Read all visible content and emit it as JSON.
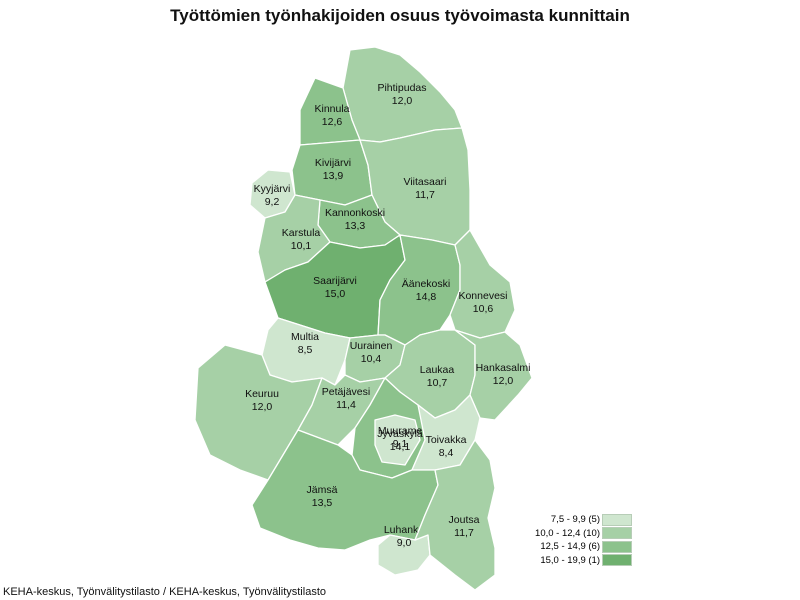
{
  "title": "Työttömien työnhakijoiden osuus työvoimasta kunnittain",
  "source": "KEHA-keskus, Työnvälitystilasto / KEHA-keskus, Työnvälitystilasto",
  "colors": {
    "class1": "#cfe6cf",
    "class2": "#a6d0a6",
    "class3": "#8cc28c",
    "class4": "#6fb06f"
  },
  "municipalities": [
    {
      "name": "Pihtipudas",
      "value": "12,0",
      "class": "class2"
    },
    {
      "name": "Kinnula",
      "value": "12,6",
      "class": "class3"
    },
    {
      "name": "Kivijärvi",
      "value": "13,9",
      "class": "class3"
    },
    {
      "name": "Viitasaari",
      "value": "11,7",
      "class": "class2"
    },
    {
      "name": "Kyyjärvi",
      "value": "9,2",
      "class": "class1"
    },
    {
      "name": "Kannonkoski",
      "value": "13,3",
      "class": "class3"
    },
    {
      "name": "Karstula",
      "value": "10,1",
      "class": "class2"
    },
    {
      "name": "Saarijärvi",
      "value": "15,0",
      "class": "class4"
    },
    {
      "name": "Äänekoski",
      "value": "14,8",
      "class": "class3"
    },
    {
      "name": "Konnevesi",
      "value": "10,6",
      "class": "class2"
    },
    {
      "name": "Multia",
      "value": "8,5",
      "class": "class1"
    },
    {
      "name": "Uurainen",
      "value": "10,4",
      "class": "class2"
    },
    {
      "name": "Laukaa",
      "value": "10,7",
      "class": "class2"
    },
    {
      "name": "Hankasalmi",
      "value": "12,0",
      "class": "class2"
    },
    {
      "name": "Keuruu",
      "value": "12,0",
      "class": "class2"
    },
    {
      "name": "Petäjävesi",
      "value": "11,4",
      "class": "class2"
    },
    {
      "name": "Muurame",
      "value": "9,1",
      "class": "class1"
    },
    {
      "name": "Jyväskylä",
      "value": "14,1",
      "class": "class3"
    },
    {
      "name": "Toivakka",
      "value": "8,4",
      "class": "class1"
    },
    {
      "name": "Jämsä",
      "value": "13,5",
      "class": "class3"
    },
    {
      "name": "Luhanka",
      "value": "9,0",
      "class": "class1"
    },
    {
      "name": "Joutsa",
      "value": "11,7",
      "class": "class2"
    }
  ],
  "legend": [
    {
      "label": "7,5 - 9,9 (5)",
      "class": "class1"
    },
    {
      "label": "10,0 - 12,4 (10)",
      "class": "class2"
    },
    {
      "label": "12,5 - 14,9 (6)",
      "class": "class3"
    },
    {
      "label": "15,0 - 19,9 (1)",
      "class": "class4"
    }
  ]
}
